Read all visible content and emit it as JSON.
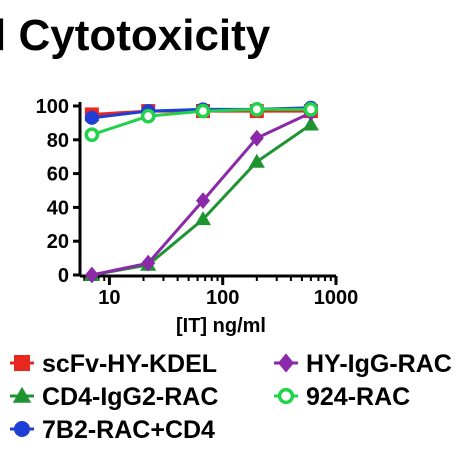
{
  "chart_data": {
    "type": "line",
    "title": "l Cytotoxicity",
    "xlabel": "[IT] ng/ml",
    "ylabel": "",
    "x_scale": "log",
    "xlim": [
      5.5,
      1000
    ],
    "ylim": [
      0,
      100
    ],
    "x_ticks": [
      10,
      100,
      1000
    ],
    "x_tick_labels": [
      "10",
      "100",
      "1000"
    ],
    "y_ticks": [
      0,
      20,
      40,
      60,
      80,
      100
    ],
    "y_tick_labels": [
      "0",
      "20",
      "40",
      "60",
      "80",
      "100"
    ],
    "legend_placement": "below",
    "series": [
      {
        "name": "scFv-HY-KDEL",
        "color": "#e8271f",
        "marker": "square",
        "x": [
          7,
          22,
          67,
          200,
          600
        ],
        "y": [
          95,
          97,
          97,
          97,
          97
        ]
      },
      {
        "name": "CD4-IgG2-RAC",
        "color": "#1e9431",
        "marker": "triangle",
        "x": [
          7,
          22,
          67,
          200,
          600
        ],
        "y": [
          0,
          6,
          33,
          67,
          89
        ]
      },
      {
        "name": "7B2-RAC+CD4",
        "color": "#1d3fd6",
        "marker": "circle",
        "x": [
          7,
          22,
          67,
          200,
          600
        ],
        "y": [
          93,
          97,
          98,
          98,
          99
        ]
      },
      {
        "name": "HY-IgG-RAC",
        "color": "#8a2aa8",
        "marker": "diamond",
        "x": [
          7,
          22,
          67,
          200,
          600
        ],
        "y": [
          0,
          7,
          44,
          81,
          96
        ]
      },
      {
        "name": "924-RAC",
        "color": "#22d24a",
        "marker": "open-circle",
        "x": [
          7,
          22,
          67,
          200,
          600
        ],
        "y": [
          83,
          94,
          97,
          98,
          98
        ]
      }
    ],
    "legend": {
      "columns": [
        [
          "scFv-HY-KDEL",
          "CD4-IgG2-RAC",
          "7B2-RAC+CD4"
        ],
        [
          "HY-IgG-RAC",
          "924-RAC"
        ]
      ]
    }
  }
}
